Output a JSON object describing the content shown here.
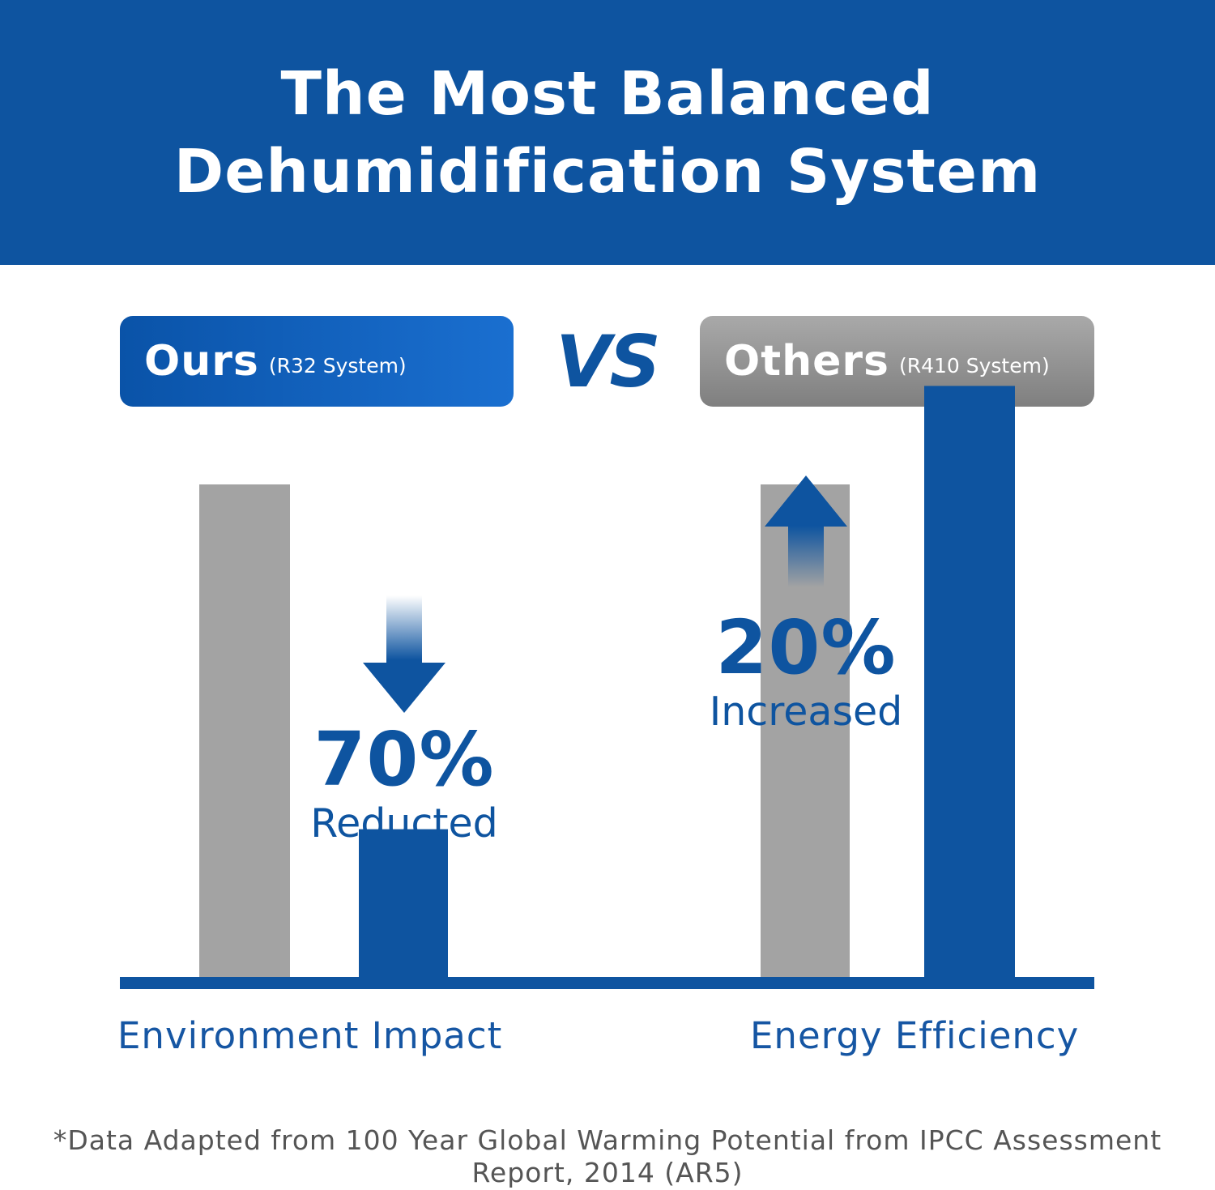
{
  "header": {
    "title_line1": "The Most Balanced",
    "title_line2": "Dehumidification System"
  },
  "legend": {
    "ours_label": "Ours",
    "ours_sub": "(R32 System)",
    "vs": "VS",
    "others_label": "Others",
    "others_sub": "(R410 System)"
  },
  "colors": {
    "brand_blue": "#0e54a0",
    "grey_bar": "#a3a3a3",
    "header_bg": "#0e54a0"
  },
  "chart_data": {
    "type": "bar",
    "categories": [
      "Environment Impact",
      "Energy Efficiency"
    ],
    "series": [
      {
        "name": "Others (R410 System)",
        "color": "#a3a3a3",
        "values": [
          100,
          100
        ]
      },
      {
        "name": "Ours (R32 System)",
        "color": "#0e54a0",
        "values": [
          30,
          120
        ]
      }
    ],
    "annotations": [
      {
        "category": "Environment Impact",
        "value": "70%",
        "text": "Reducted",
        "direction": "down"
      },
      {
        "category": "Energy Efficiency",
        "value": "20%",
        "text": "Increased",
        "direction": "up"
      }
    ],
    "note": "*Data Adapted from 100 Year Global Warming Potential from IPCC Assessment Report, 2014 (AR5)"
  }
}
